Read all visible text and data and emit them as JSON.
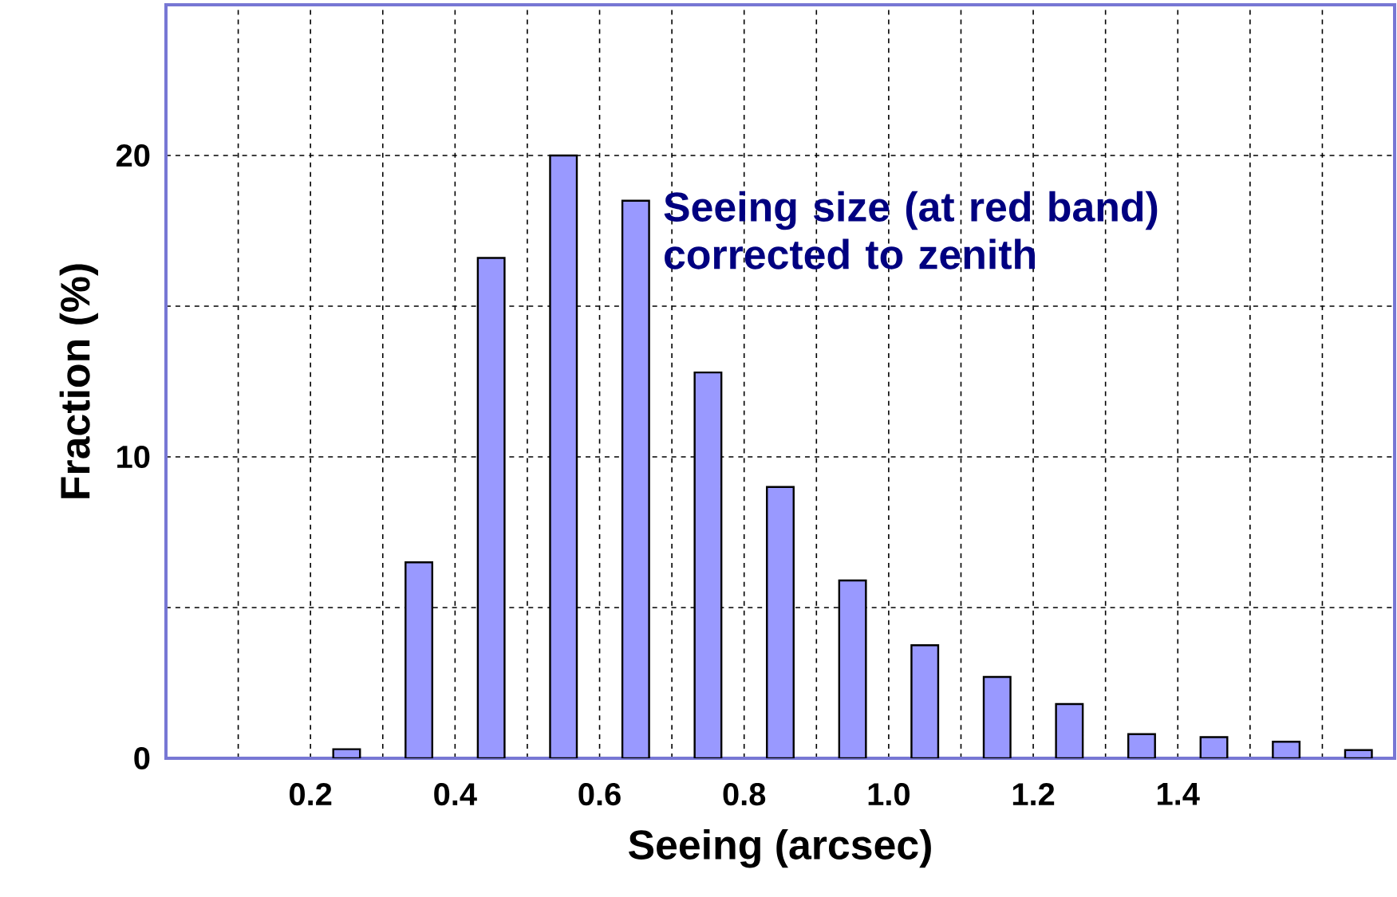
{
  "chart_data": {
    "type": "bar",
    "xlabel": "Seeing (arcsec)",
    "ylabel": "Fraction (%)",
    "annotations": [
      "Seeing size (at red band) corrected to zenith"
    ],
    "x": [
      0.25,
      0.35,
      0.45,
      0.55,
      0.65,
      0.75,
      0.85,
      0.95,
      1.05,
      1.15,
      1.25,
      1.35,
      1.45,
      1.55,
      1.65
    ],
    "values": [
      0.3,
      6.5,
      16.6,
      20.0,
      18.5,
      12.8,
      9.0,
      5.9,
      3.75,
      2.7,
      1.8,
      0.8,
      0.7,
      0.55,
      0.27
    ],
    "color": "#9999ff",
    "xlim": [
      0,
      1.7
    ],
    "xticks": [
      {
        "value": 0.1,
        "label": null
      },
      {
        "value": 0.2,
        "label": "0.2"
      },
      {
        "value": 0.3,
        "label": null
      },
      {
        "value": 0.4,
        "label": "0.4"
      },
      {
        "value": 0.5,
        "label": null
      },
      {
        "value": 0.6,
        "label": "0.6"
      },
      {
        "value": 0.7,
        "label": null
      },
      {
        "value": 0.8,
        "label": "0.8"
      },
      {
        "value": 0.9,
        "label": null
      },
      {
        "value": 1.0,
        "label": "1.0"
      },
      {
        "value": 1.1,
        "label": null
      },
      {
        "value": 1.2,
        "label": "1.2"
      },
      {
        "value": 1.3,
        "label": null
      },
      {
        "value": 1.4,
        "label": "1.4"
      },
      {
        "value": 1.5,
        "label": null
      },
      {
        "value": 1.6,
        "label": null
      }
    ],
    "ylim": [
      0,
      25
    ],
    "yticks": [
      0,
      {
        "value": 5,
        "label": null
      },
      10,
      {
        "value": 15,
        "label": null
      },
      20
    ],
    "grid": true
  }
}
